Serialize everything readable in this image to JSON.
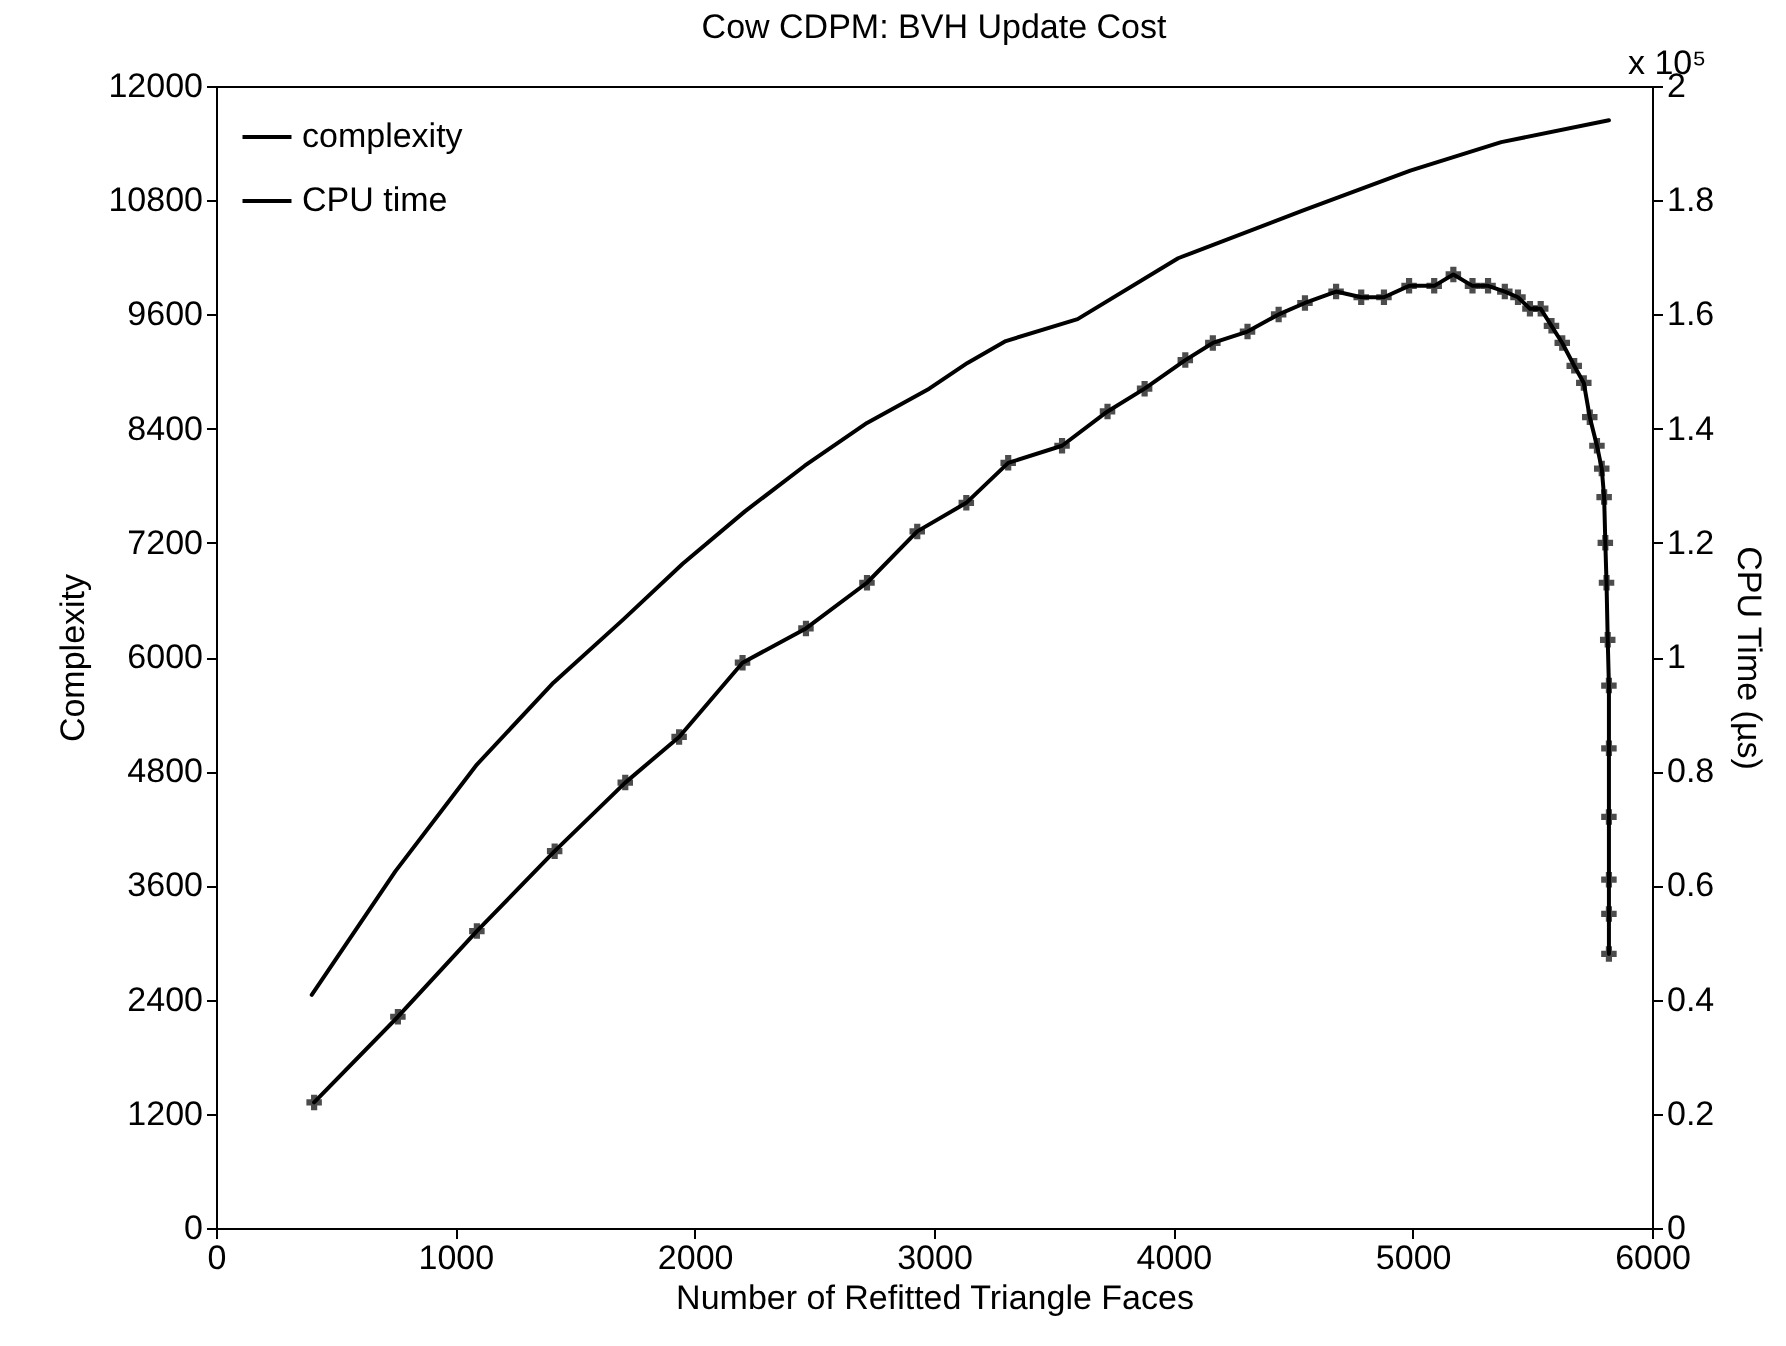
{
  "chart_data": {
    "type": "line",
    "title": "Cow CDPM: BVH Update Cost",
    "xlabel": "Number of Refitted Triangle Faces",
    "ylabel": "Complexity",
    "y2label": "CPU Time (µs)",
    "annotations": [
      "x 10⁵"
    ],
    "xlim": [
      0,
      6000
    ],
    "xticks": [
      0,
      1000,
      2000,
      3000,
      4000,
      5000,
      6000
    ],
    "ylim": [
      0,
      12000
    ],
    "yticks": [
      0,
      1200,
      2400,
      3600,
      4800,
      6000,
      7200,
      8400,
      9600,
      10800,
      12000
    ],
    "y2lim": [
      0,
      2
    ],
    "y2ticks": [
      0,
      0.2,
      0.4,
      0.6,
      0.8,
      1,
      1.2,
      1.4,
      1.6,
      1.8,
      2
    ],
    "grid": false,
    "legend": "top left",
    "line_style": "solid",
    "series": [
      {
        "name": "complexity",
        "color": "#000000",
        "marker": "none",
        "x": [
          400,
          750,
          1090,
          1410,
          1700,
          1950,
          2210,
          2460,
          2720,
          2980,
          3140,
          3300,
          3600,
          4020,
          4540,
          4990,
          5370,
          5820
        ],
        "values": [
          2450,
          3750,
          4870,
          5730,
          6390,
          6980,
          7530,
          8010,
          8460,
          8820,
          9090,
          9320,
          9550,
          10190,
          10690,
          11110,
          11410,
          11640
        ]
      },
      {
        "name": "CPU time",
        "color": "#000000",
        "marker": "cross",
        "axis": "y2",
        "x": [
          410,
          760,
          1090,
          1415,
          1710,
          1935,
          2200,
          2465,
          2720,
          2930,
          3135,
          3310,
          3535,
          3725,
          3880,
          4050,
          4165,
          4310,
          4440,
          4550,
          4680,
          4785,
          4880,
          4985,
          5090,
          5170,
          5250,
          5315,
          5385,
          5440,
          5490,
          5535,
          5580,
          5625,
          5675,
          5715,
          5740,
          5770,
          5790,
          5800,
          5805,
          5810,
          5815,
          5820,
          5820,
          5820,
          5820,
          5820,
          5820
        ],
        "values": [
          0.22,
          0.37,
          0.52,
          0.66,
          0.78,
          0.86,
          0.99,
          1.05,
          1.13,
          1.22,
          1.27,
          1.34,
          1.37,
          1.43,
          1.47,
          1.52,
          1.55,
          1.57,
          1.6,
          1.62,
          1.64,
          1.63,
          1.63,
          1.65,
          1.65,
          1.67,
          1.65,
          1.65,
          1.64,
          1.63,
          1.61,
          1.61,
          1.58,
          1.55,
          1.51,
          1.48,
          1.42,
          1.37,
          1.33,
          1.28,
          1.2,
          1.13,
          1.03,
          0.95,
          0.84,
          0.72,
          0.61,
          0.55,
          0.48
        ]
      }
    ]
  }
}
